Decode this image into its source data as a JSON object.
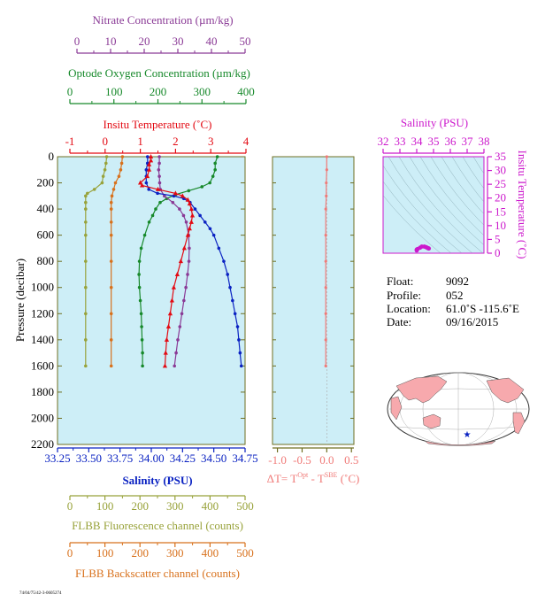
{
  "colors": {
    "nitrate": "#8a3a96",
    "oxygen": "#17892b",
    "temperature": "#e30a13",
    "salinity": "#0a22c2",
    "fluorescence": "#98a23a",
    "backscatter": "#d8711c",
    "delta_t": "#f07a78",
    "ts": "#cc19cc",
    "panel_bg": "#cdeef7",
    "frame": "#6f6f22"
  },
  "chart_data": [
    {
      "type": "line",
      "name": "profile",
      "ylabel": "Pressure (decibar)",
      "ylim": [
        2200,
        0
      ],
      "yticks": [
        "0",
        "200",
        "400",
        "600",
        "800",
        "1000",
        "1200",
        "1400",
        "1600",
        "1800",
        "2000",
        "2200"
      ],
      "axes": {
        "nitrate": {
          "label": "Nitrate Concentration (µm/kg)",
          "ticks": [
            "0",
            "10",
            "20",
            "30",
            "40",
            "50"
          ],
          "range": [
            0,
            50
          ]
        },
        "oxygen": {
          "label": "Optode Oxygen Concentration (µm/kg)",
          "ticks": [
            "0",
            "100",
            "200",
            "300",
            "400"
          ],
          "range": [
            0,
            400
          ]
        },
        "temperature": {
          "label": "Insitu Temperature (˚C)",
          "ticks": [
            "-1",
            "0",
            "1",
            "2",
            "3",
            "4"
          ],
          "range": [
            -1,
            4
          ]
        },
        "salinity": {
          "label": "Salinity (PSU)",
          "ticks": [
            "33.25",
            "33.50",
            "33.75",
            "34.00",
            "34.25",
            "34.50",
            "34.75"
          ],
          "range": [
            33.25,
            34.75
          ]
        },
        "fluorescence": {
          "label": "FLBB Fluorescence channel (counts)",
          "ticks": [
            "0",
            "100",
            "200",
            "300",
            "400",
            "500"
          ],
          "range": [
            0,
            500
          ]
        },
        "backscatter": {
          "label": "FLBB Backscatter channel (counts)",
          "ticks": [
            "0",
            "100",
            "200",
            "300",
            "400",
            "500"
          ],
          "range": [
            0,
            500
          ]
        }
      },
      "series": {
        "nitrate": {
          "p": [
            0,
            50,
            100,
            150,
            200,
            250,
            300,
            350,
            400,
            450,
            500,
            600,
            700,
            800,
            900,
            1000,
            1100,
            1200,
            1300,
            1400,
            1500,
            1600
          ],
          "v": [
            24.5,
            24.5,
            24.3,
            24.5,
            24.6,
            24.8,
            26,
            28.5,
            30.5,
            31.7,
            32.5,
            33.2,
            33.4,
            33.3,
            32.9,
            32.4,
            31.8,
            31.2,
            30.6,
            30,
            29.5,
            29
          ]
        },
        "oxygen": {
          "p": [
            0,
            50,
            100,
            150,
            200,
            230,
            260,
            290,
            320,
            350,
            400,
            450,
            500,
            600,
            700,
            800,
            900,
            1000,
            1100,
            1200,
            1300,
            1400,
            1500,
            1600
          ],
          "v": [
            335,
            330,
            330,
            325,
            318,
            300,
            270,
            240,
            220,
            205,
            195,
            188,
            180,
            170,
            162,
            158,
            157,
            158,
            160,
            162,
            163,
            164,
            165,
            165
          ]
        },
        "temperature": {
          "p": [
            0,
            30,
            60,
            100,
            150,
            200,
            220,
            250,
            280,
            300,
            330,
            360,
            400,
            450,
            500,
            550,
            600,
            700,
            800,
            900,
            1000,
            1100,
            1200,
            1300,
            1400,
            1500,
            1600
          ],
          "v": [
            1.3,
            1.3,
            1.25,
            1.25,
            1.2,
            1.0,
            1.05,
            1.5,
            2.0,
            2.2,
            2.35,
            2.4,
            2.45,
            2.48,
            2.45,
            2.4,
            2.35,
            2.25,
            2.15,
            2.05,
            1.95,
            1.9,
            1.85,
            1.8,
            1.75,
            1.72,
            1.7
          ]
        },
        "salinity": {
          "p": [
            0,
            50,
            100,
            150,
            200,
            250,
            280,
            300,
            320,
            350,
            400,
            450,
            500,
            550,
            600,
            700,
            800,
            900,
            1000,
            1100,
            1200,
            1300,
            1400,
            1500,
            1600
          ],
          "v": [
            33.97,
            33.97,
            33.96,
            33.96,
            33.96,
            33.98,
            34.05,
            34.18,
            34.26,
            34.31,
            34.35,
            34.39,
            34.43,
            34.47,
            34.5,
            34.54,
            34.58,
            34.61,
            34.63,
            34.65,
            34.67,
            34.69,
            34.7,
            34.71,
            34.72
          ]
        },
        "fluorescence": {
          "p": [
            0,
            50,
            100,
            150,
            200,
            250,
            280,
            300,
            350,
            400,
            500,
            600,
            800,
            1000,
            1200,
            1400,
            1600
          ],
          "v": [
            105,
            103,
            100,
            95,
            92,
            70,
            50,
            45,
            45,
            45,
            45,
            45,
            45,
            45,
            45,
            45,
            45
          ]
        },
        "backscatter": {
          "p": [
            0,
            50,
            100,
            150,
            200,
            250,
            300,
            350,
            400,
            500,
            600,
            800,
            1000,
            1200,
            1400,
            1600
          ],
          "v": [
            150,
            148,
            145,
            140,
            130,
            125,
            120,
            118,
            118,
            118,
            118,
            118,
            118,
            118,
            118,
            118
          ]
        }
      }
    },
    {
      "type": "line",
      "name": "delta_t",
      "xlabel": "ΔT= T",
      "xlabel_sup1": "Opt",
      "xlabel_mid": " - T",
      "xlabel_sup2": "SBE",
      "xlabel_unit": " (˚C)",
      "xlim": [
        -1.1,
        0.55
      ],
      "xticks": [
        "-1.0",
        "-0.5",
        "0.0",
        "0.5"
      ],
      "series": {
        "p": [
          0,
          100,
          200,
          300,
          400,
          600,
          800,
          1000,
          1200,
          1400,
          1600
        ],
        "v": [
          0.0,
          0.0,
          -0.01,
          -0.01,
          -0.02,
          -0.02,
          -0.02,
          -0.02,
          -0.02,
          -0.02,
          -0.02
        ]
      }
    },
    {
      "type": "scatter",
      "name": "ts_diagram",
      "title": "Salinity (PSU)",
      "xticks": [
        "32",
        "33",
        "34",
        "35",
        "36",
        "37",
        "38"
      ],
      "xlim": [
        32,
        38
      ],
      "ylabel": "Insitu Temperature (˚C)",
      "yticks": [
        "0",
        "5",
        "10",
        "15",
        "20",
        "25",
        "30",
        "35"
      ],
      "ylim": [
        0,
        35
      ],
      "points": [
        [
          34.0,
          1.3
        ],
        [
          34.05,
          1.5
        ],
        [
          34.2,
          2.0
        ],
        [
          34.3,
          2.4
        ],
        [
          34.45,
          2.4
        ],
        [
          34.55,
          2.2
        ],
        [
          34.62,
          2.0
        ],
        [
          34.68,
          1.8
        ],
        [
          34.72,
          1.7
        ],
        [
          34.0,
          1.0
        ]
      ]
    }
  ],
  "metadata": {
    "float_label": "Float:",
    "float_value": "9092",
    "profile_label": "Profile:",
    "profile_value": "052",
    "location_label": "Location:",
    "location_value": "61.0˚S  -115.6˚E",
    "date_label": "Date:",
    "date_value": "09/16/2015"
  },
  "footer_code": "74/04/75/42-3-0605274"
}
